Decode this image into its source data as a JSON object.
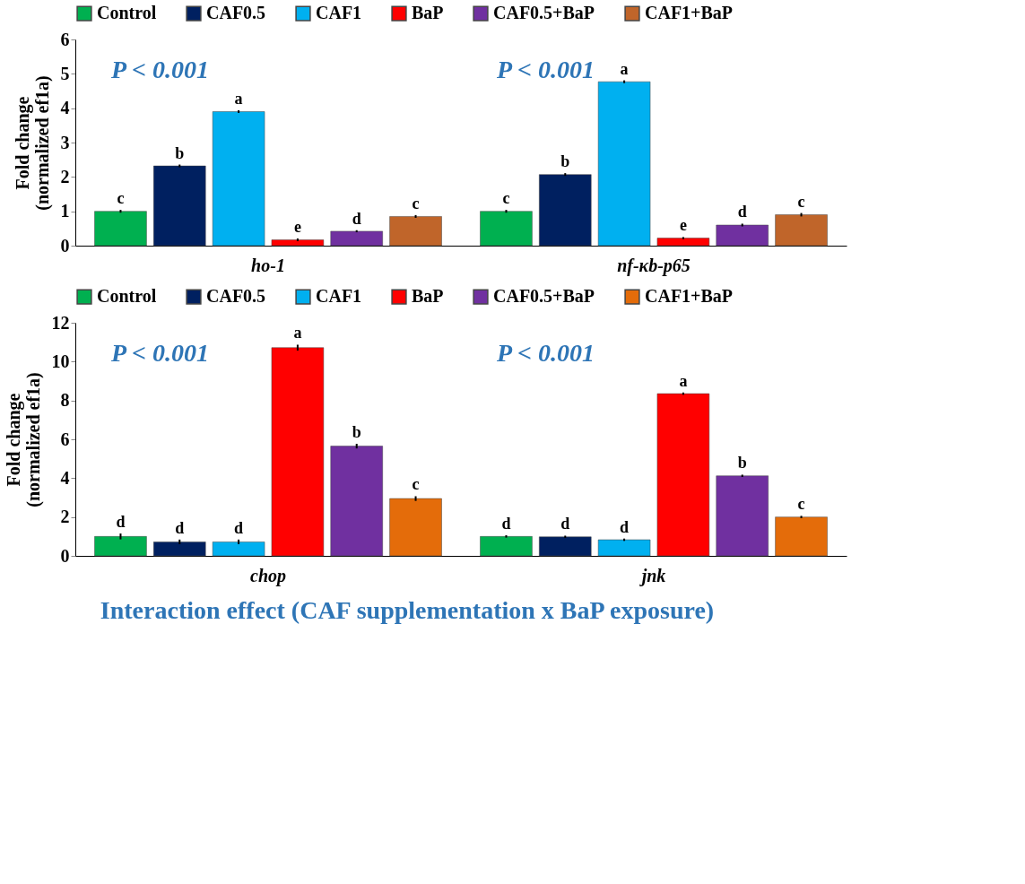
{
  "chart_data": [
    {
      "type": "bar",
      "categories": [
        "ho-1",
        "nf-κb-p65"
      ],
      "ylabel": "Fold change\n(normalized ef1a)",
      "ylim": [
        0,
        6
      ],
      "yticks": [
        0,
        1,
        2,
        3,
        4,
        5,
        6
      ],
      "grid": false,
      "legend": "top",
      "annotations": [
        "P < 0.001",
        "P < 0.001"
      ],
      "series": [
        {
          "name": "Control",
          "color": "#00b050",
          "values": [
            1.0,
            1.0
          ],
          "errors": [
            0.04,
            0.04
          ],
          "value_labels": [
            "c",
            "c"
          ]
        },
        {
          "name": "CAF0.5",
          "color": "#002060",
          "values": [
            2.32,
            2.07
          ],
          "errors": [
            0.04,
            0.04
          ],
          "value_labels": [
            "b",
            "b"
          ]
        },
        {
          "name": "CAF1",
          "color": "#00b0f0",
          "values": [
            3.9,
            4.77
          ],
          "errors": [
            0.04,
            0.04
          ],
          "value_labels": [
            "a",
            "a"
          ]
        },
        {
          "name": "BaP",
          "color": "#ff0000",
          "values": [
            0.17,
            0.22
          ],
          "errors": [
            0.04,
            0.03
          ],
          "value_labels": [
            "e",
            "e"
          ]
        },
        {
          "name": "CAF0.5+BaP",
          "color": "#7030a0",
          "values": [
            0.42,
            0.6
          ],
          "errors": [
            0.03,
            0.04
          ],
          "value_labels": [
            "d",
            "d"
          ]
        },
        {
          "name": "CAF1+BaP",
          "color": "#c0652a",
          "values": [
            0.85,
            0.9
          ],
          "errors": [
            0.04,
            0.05
          ],
          "value_labels": [
            "c",
            "c"
          ]
        }
      ]
    },
    {
      "type": "bar",
      "categories": [
        "chop",
        "jnk"
      ],
      "ylabel": "Fold change\n(normalized ef1a)",
      "ylim": [
        0,
        12
      ],
      "yticks": [
        0,
        2,
        4,
        6,
        8,
        10,
        12
      ],
      "grid": false,
      "legend": "top",
      "annotations": [
        "P < 0.001",
        "P < 0.001",
        "Interaction effect (CAF supplementation x BaP exposure)"
      ],
      "series": [
        {
          "name": "Control",
          "color": "#00b050",
          "values": [
            1.0,
            1.0
          ],
          "errors": [
            0.15,
            0.06
          ],
          "value_labels": [
            "d",
            "d"
          ]
        },
        {
          "name": "CAF0.5",
          "color": "#002060",
          "values": [
            0.72,
            0.98
          ],
          "errors": [
            0.12,
            0.06
          ],
          "value_labels": [
            "d",
            "d"
          ]
        },
        {
          "name": "CAF1",
          "color": "#00b0f0",
          "values": [
            0.72,
            0.83
          ],
          "errors": [
            0.12,
            0.06
          ],
          "value_labels": [
            "d",
            "d"
          ]
        },
        {
          "name": "BaP",
          "color": "#ff0000",
          "values": [
            10.72,
            8.35
          ],
          "errors": [
            0.15,
            0.06
          ],
          "value_labels": [
            "a",
            "a"
          ]
        },
        {
          "name": "CAF0.5+BaP",
          "color": "#7030a0",
          "values": [
            5.65,
            4.12
          ],
          "errors": [
            0.12,
            0.06
          ],
          "value_labels": [
            "b",
            "b"
          ]
        },
        {
          "name": "CAF1+BaP",
          "color": "#e46c0a",
          "values": [
            2.95,
            2.0
          ],
          "errors": [
            0.12,
            0.06
          ],
          "value_labels": [
            "c",
            "c"
          ]
        }
      ]
    }
  ]
}
